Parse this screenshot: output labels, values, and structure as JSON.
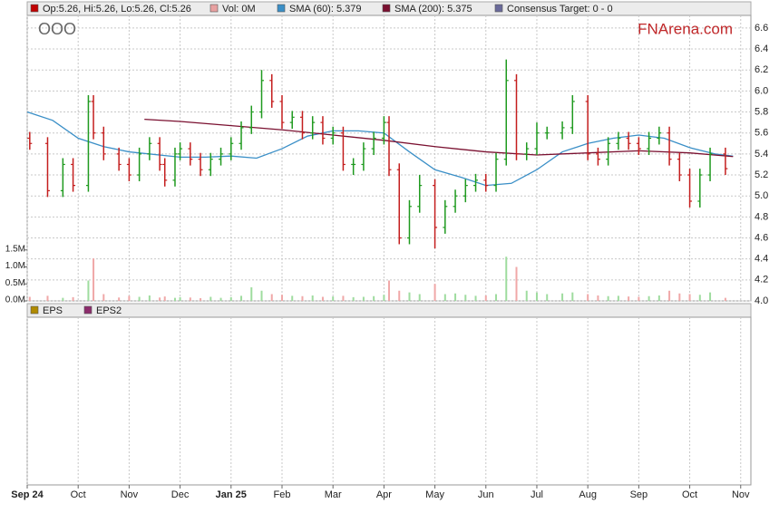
{
  "chart_data": {
    "type": "ohlc",
    "title": "OOO",
    "watermark": "FNArena.com",
    "xlim": [
      0,
      14.2
    ],
    "xticks": [
      {
        "value": 0,
        "label": "Sep 24"
      },
      {
        "value": 1,
        "label": "Oct"
      },
      {
        "value": 2,
        "label": "Nov"
      },
      {
        "value": 3,
        "label": "Dec"
      },
      {
        "value": 4,
        "label": "Jan 25"
      },
      {
        "value": 5,
        "label": "Feb"
      },
      {
        "value": 6,
        "label": "Mar"
      },
      {
        "value": 7,
        "label": "Apr"
      },
      {
        "value": 8,
        "label": "May"
      },
      {
        "value": 9,
        "label": "Jun"
      },
      {
        "value": 10,
        "label": "Jul"
      },
      {
        "value": 11,
        "label": "Aug"
      },
      {
        "value": 12,
        "label": "Sep"
      },
      {
        "value": 13,
        "label": "Oct"
      },
      {
        "value": 14,
        "label": "Nov"
      }
    ],
    "ylim": [
      4.0,
      6.72
    ],
    "yticks": [
      {
        "value": 4,
        "label": "4.0"
      },
      4.2,
      4.4,
      4.6,
      4.8,
      {
        "value": 5,
        "label": "5.0"
      },
      5.2,
      5.4,
      5.6,
      5.8,
      {
        "value": 6,
        "label": "6.0"
      },
      6.2,
      6.4,
      6.6
    ],
    "y2lim": [
      0,
      8400000
    ],
    "y2ticks": [
      {
        "value": 0,
        "label": "0.0M"
      },
      {
        "value": 500000,
        "label": "0.5M"
      },
      {
        "value": 1000000,
        "label": "1.0M"
      },
      {
        "value": 1500000,
        "label": "1.5M"
      }
    ],
    "grid": true,
    "x": [
      0.05,
      0.4,
      0.7,
      0.9,
      1.2,
      1.3,
      1.5,
      1.8,
      2.0,
      2.2,
      2.4,
      2.6,
      2.7,
      2.9,
      3.0,
      3.2,
      3.4,
      3.6,
      3.8,
      4.0,
      4.2,
      4.4,
      4.6,
      4.8,
      5.0,
      5.2,
      5.4,
      5.6,
      5.8,
      6.0,
      6.2,
      6.4,
      6.6,
      6.8,
      7.0,
      7.1,
      7.3,
      7.5,
      7.7,
      8.0,
      8.2,
      8.4,
      8.6,
      8.8,
      9.0,
      9.2,
      9.4,
      9.6,
      9.8,
      10.0,
      10.2,
      10.5,
      10.7,
      11.0,
      11.2,
      11.4,
      11.6,
      11.8,
      12.0,
      12.2,
      12.4,
      12.6,
      12.8,
      13.0,
      13.2,
      13.4,
      13.7
    ],
    "ohlc": {
      "name": "Op:5.26, Hi:5.26, Lo:5.26, Cl:5.26",
      "color": "#c00000",
      "up_color": "#1f9a1f",
      "down_color": "#c41e1e",
      "open": [
        5.55,
        5.5,
        5.05,
        5.3,
        5.1,
        5.9,
        5.6,
        5.4,
        5.3,
        5.2,
        5.4,
        5.5,
        5.3,
        5.15,
        5.4,
        5.45,
        5.35,
        5.25,
        5.35,
        5.4,
        5.5,
        5.65,
        5.8,
        6.1,
        5.9,
        5.7,
        5.75,
        5.6,
        5.7,
        5.55,
        5.6,
        5.3,
        5.3,
        5.45,
        5.55,
        5.7,
        5.25,
        4.6,
        4.9,
        5.1,
        4.7,
        4.9,
        5.0,
        5.1,
        5.15,
        5.1,
        5.35,
        6.1,
        5.4,
        5.45,
        5.6,
        5.6,
        5.65,
        5.9,
        5.4,
        5.35,
        5.5,
        5.55,
        5.5,
        5.45,
        5.55,
        5.6,
        5.35,
        5.2,
        4.95,
        5.2,
        5.4
      ],
      "high": [
        5.61,
        5.56,
        5.36,
        5.36,
        5.96,
        5.96,
        5.66,
        5.46,
        5.36,
        5.46,
        5.56,
        5.56,
        5.36,
        5.46,
        5.51,
        5.51,
        5.41,
        5.41,
        5.46,
        5.56,
        5.71,
        5.86,
        6.2,
        6.16,
        5.96,
        5.81,
        5.81,
        5.76,
        5.76,
        5.66,
        5.66,
        5.36,
        5.51,
        5.61,
        5.76,
        5.76,
        5.31,
        4.96,
        5.2,
        5.16,
        4.96,
        5.06,
        5.16,
        5.21,
        5.21,
        5.41,
        6.3,
        6.16,
        5.51,
        5.7,
        5.66,
        5.71,
        5.96,
        5.96,
        5.46,
        5.56,
        5.61,
        5.61,
        5.56,
        5.61,
        5.66,
        5.66,
        5.41,
        5.26,
        5.26,
        5.46,
        5.46
      ],
      "low": [
        5.44,
        4.99,
        4.99,
        5.04,
        5.04,
        5.54,
        5.34,
        5.24,
        5.14,
        5.14,
        5.34,
        5.24,
        5.09,
        5.09,
        5.34,
        5.29,
        5.19,
        5.19,
        5.29,
        5.34,
        5.44,
        5.59,
        5.74,
        5.84,
        5.64,
        5.64,
        5.54,
        5.54,
        5.49,
        5.49,
        5.24,
        5.2,
        5.24,
        5.39,
        5.49,
        5.19,
        4.54,
        4.54,
        4.84,
        4.5,
        4.64,
        4.84,
        4.94,
        5.04,
        5.04,
        5.04,
        5.29,
        5.34,
        5.34,
        5.39,
        5.54,
        5.54,
        5.59,
        5.34,
        5.29,
        5.29,
        5.44,
        5.44,
        5.39,
        5.39,
        5.49,
        5.29,
        5.14,
        4.89,
        4.89,
        5.14,
        5.2
      ],
      "close": [
        5.5,
        5.05,
        5.3,
        5.1,
        5.9,
        5.6,
        5.4,
        5.3,
        5.2,
        5.4,
        5.5,
        5.3,
        5.15,
        5.4,
        5.45,
        5.35,
        5.25,
        5.35,
        5.4,
        5.5,
        5.65,
        5.8,
        6.1,
        5.9,
        5.7,
        5.75,
        5.6,
        5.7,
        5.55,
        5.6,
        5.3,
        5.3,
        5.45,
        5.55,
        5.7,
        5.25,
        4.6,
        4.9,
        5.1,
        4.7,
        4.9,
        5.0,
        5.1,
        5.15,
        5.1,
        5.35,
        6.1,
        5.4,
        5.45,
        5.6,
        5.6,
        5.65,
        5.9,
        5.4,
        5.35,
        5.5,
        5.55,
        5.5,
        5.45,
        5.55,
        5.6,
        5.35,
        5.2,
        4.95,
        5.2,
        5.4,
        5.26
      ]
    },
    "volume": {
      "name": "Vol: 0M",
      "color": "#e8a0a0",
      "axis": "y2",
      "up_color": "#9fdc9f",
      "down_color": "#f0a8a8",
      "values": [
        120000,
        150000,
        90000,
        110000,
        600000,
        1250000,
        200000,
        100000,
        150000,
        120000,
        160000,
        100000,
        130000,
        90000,
        110000,
        100000,
        80000,
        120000,
        90000,
        110000,
        150000,
        400000,
        300000,
        200000,
        180000,
        150000,
        140000,
        160000,
        120000,
        130000,
        150000,
        110000,
        120000,
        140000,
        180000,
        600000,
        300000,
        250000,
        200000,
        500000,
        200000,
        220000,
        180000,
        150000,
        160000,
        200000,
        1300000,
        1000000,
        300000,
        250000,
        200000,
        220000,
        250000,
        200000,
        160000,
        140000,
        150000,
        130000,
        120000,
        140000,
        160000,
        300000,
        220000,
        200000,
        180000,
        250000,
        90000
      ]
    },
    "series": [
      {
        "name": "SMA (60): 5.379",
        "color": "#3a8fc7",
        "x": [
          0,
          0.5,
          1,
          1.5,
          2,
          3,
          3.5,
          4,
          4.5,
          5,
          5.5,
          6,
          6.5,
          7,
          7.5,
          8,
          8.5,
          9,
          9.5,
          10,
          10.5,
          11,
          11.5,
          12,
          12.5,
          13,
          13.5,
          13.85
        ],
        "values": [
          5.8,
          5.72,
          5.55,
          5.47,
          5.42,
          5.37,
          5.37,
          5.38,
          5.36,
          5.45,
          5.57,
          5.62,
          5.62,
          5.6,
          5.42,
          5.25,
          5.18,
          5.1,
          5.12,
          5.25,
          5.42,
          5.5,
          5.55,
          5.58,
          5.55,
          5.46,
          5.4,
          5.379
        ]
      },
      {
        "name": "SMA (200): 5.375",
        "color": "#7a1030",
        "x": [
          2.3,
          3,
          4,
          5,
          6,
          7,
          8,
          9,
          10,
          11,
          12,
          13,
          13.85
        ],
        "values": [
          5.73,
          5.71,
          5.67,
          5.63,
          5.58,
          5.53,
          5.47,
          5.42,
          5.39,
          5.41,
          5.43,
          5.41,
          5.375
        ]
      }
    ],
    "consensus": {
      "name": "Consensus Target: 0 - 0",
      "color": "#6a6a9a"
    },
    "lower_panel": {
      "series": [
        {
          "name": "EPS",
          "color": "#b08a00"
        },
        {
          "name": "EPS2",
          "color": "#8c2c6c"
        }
      ]
    }
  }
}
